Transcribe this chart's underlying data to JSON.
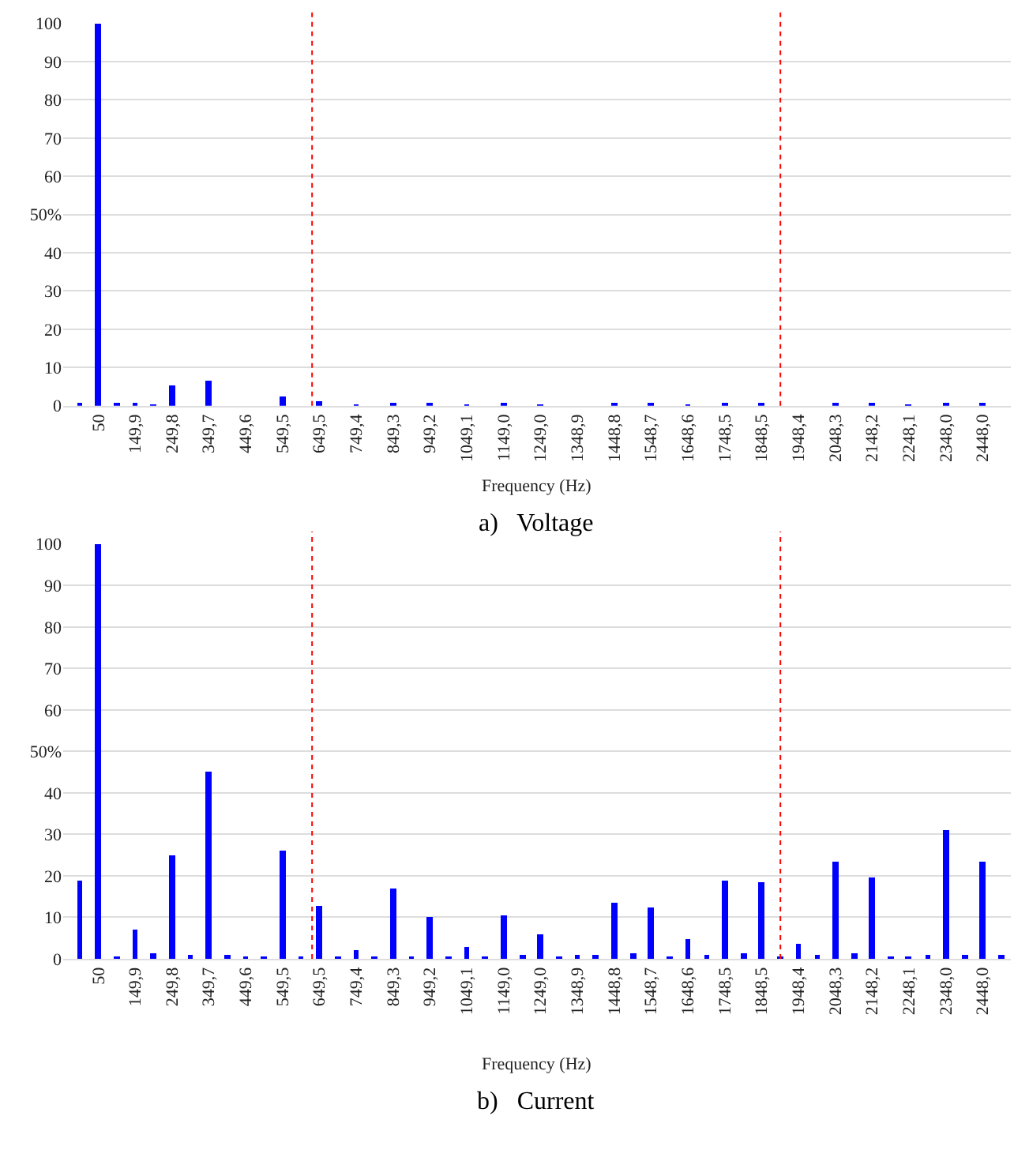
{
  "chart_data": [
    {
      "type": "bar",
      "xlabel": "Frequency (Hz)",
      "annotations": [
        "a)   Voltage"
      ],
      "x": [
        0,
        50,
        100,
        149.9,
        200,
        249.8,
        300,
        349.7,
        400,
        449.6,
        500,
        549.5,
        600,
        649.5,
        700,
        749.4,
        800,
        849.3,
        900,
        949.2,
        1000,
        1049.1,
        1100,
        1149,
        1200,
        1249,
        1300,
        1348.9,
        1400,
        1448.8,
        1500,
        1548.7,
        1600,
        1648.6,
        1700,
        1748.5,
        1800,
        1848.5,
        1900,
        1948.4,
        2000,
        2048.3,
        2100,
        2148.2,
        2200,
        2248.1,
        2300,
        2348,
        2400,
        2448,
        2500
      ],
      "series": [
        {
          "color": "#0000ff",
          "values": [
            0.5,
            100,
            0.7,
            0.5,
            0.3,
            5.4,
            0,
            6.5,
            0,
            0,
            0,
            2.3,
            0,
            1.2,
            0,
            0.3,
            0,
            1,
            0,
            0.7,
            0,
            0.3,
            0,
            0.5,
            0,
            0.2,
            0,
            0,
            0,
            0.5,
            0,
            0.5,
            0,
            0.2,
            0,
            0.5,
            0,
            0.5,
            0,
            0,
            0,
            0.5,
            0,
            0.5,
            0,
            0.2,
            0,
            0.5,
            0,
            0.5,
            0
          ]
        }
      ],
      "xlim": [
        -45,
        2525
      ],
      "xticks": [
        50,
        {
          "value": 149.9,
          "label": "149,9"
        },
        {
          "value": 249.8,
          "label": "249,8"
        },
        {
          "value": 349.7,
          "label": "349,7"
        },
        {
          "value": 449.6,
          "label": "449,6"
        },
        {
          "value": 549.5,
          "label": "549,5"
        },
        {
          "value": 649.5,
          "label": "649,5"
        },
        {
          "value": 749.4,
          "label": "749,4"
        },
        {
          "value": 849.3,
          "label": "849,3"
        },
        {
          "value": 949.2,
          "label": "949,2"
        },
        {
          "value": 1049.1,
          "label": "1049,1"
        },
        {
          "value": 1149,
          "label": "1149,0"
        },
        {
          "value": 1249,
          "label": "1249,0"
        },
        {
          "value": 1348.9,
          "label": "1348,9"
        },
        {
          "value": 1448.8,
          "label": "1448,8"
        },
        {
          "value": 1548.7,
          "label": "1548,7"
        },
        {
          "value": 1648.6,
          "label": "1648,6"
        },
        {
          "value": 1748.5,
          "label": "1748,5"
        },
        {
          "value": 1848.5,
          "label": "1848,5"
        },
        {
          "value": 1948.4,
          "label": "1948,4"
        },
        {
          "value": 2048.3,
          "label": "2048,3"
        },
        {
          "value": 2148.2,
          "label": "2148,2"
        },
        {
          "value": 2248.1,
          "label": "2248,1"
        },
        {
          "value": 2348,
          "label": "2348,0"
        },
        {
          "value": 2448,
          "label": "2448,0"
        }
      ],
      "ylim": [
        0,
        100
      ],
      "yticks": [
        0,
        10,
        20,
        30,
        40,
        {
          "value": 50,
          "label": "50%"
        },
        60,
        70,
        80,
        90,
        100
      ],
      "grid": "y",
      "ref_lines": [
        {
          "axis": "x",
          "value": 630,
          "color": "#ff0000",
          "line_style": "dotted"
        },
        {
          "axis": "x",
          "value": 1900,
          "color": "#ff0000",
          "line_style": "dotted"
        }
      ]
    },
    {
      "type": "bar",
      "xlabel": "Frequency (Hz)",
      "annotations": [
        "b)   Current"
      ],
      "x": [
        0,
        50,
        100,
        149.9,
        200,
        249.8,
        300,
        349.7,
        400,
        449.6,
        500,
        549.5,
        600,
        649.5,
        700,
        749.4,
        800,
        849.3,
        900,
        949.2,
        1000,
        1049.1,
        1100,
        1149,
        1200,
        1249,
        1300,
        1348.9,
        1400,
        1448.8,
        1500,
        1548.7,
        1600,
        1648.6,
        1700,
        1748.5,
        1800,
        1848.5,
        1900,
        1948.4,
        2000,
        2048.3,
        2100,
        2148.2,
        2200,
        2248.1,
        2300,
        2348,
        2400,
        2448,
        2500
      ],
      "series": [
        {
          "color": "#0000ff",
          "values": [
            19,
            100,
            0.7,
            7,
            1.2,
            25,
            1,
            45,
            1,
            0.5,
            0.5,
            26,
            0.5,
            13,
            0.5,
            2,
            0.5,
            17,
            0.8,
            10,
            0.5,
            3,
            0.5,
            10.5,
            1,
            6,
            0.5,
            1,
            1,
            13.5,
            1.2,
            12.5,
            0.5,
            5,
            1,
            19,
            1.5,
            18.5,
            0.5,
            3.5,
            1,
            23.5,
            1.5,
            19.5,
            0.5,
            0.5,
            1,
            31,
            1,
            23.5,
            1
          ]
        }
      ],
      "xlim": [
        -45,
        2525
      ],
      "xticks": [
        50,
        {
          "value": 149.9,
          "label": "149,9"
        },
        {
          "value": 249.8,
          "label": "249,8"
        },
        {
          "value": 349.7,
          "label": "349,7"
        },
        {
          "value": 449.6,
          "label": "449,6"
        },
        {
          "value": 549.5,
          "label": "549,5"
        },
        {
          "value": 649.5,
          "label": "649,5"
        },
        {
          "value": 749.4,
          "label": "749,4"
        },
        {
          "value": 849.3,
          "label": "849,3"
        },
        {
          "value": 949.2,
          "label": "949,2"
        },
        {
          "value": 1049.1,
          "label": "1049,1"
        },
        {
          "value": 1149,
          "label": "1149,0"
        },
        {
          "value": 1249,
          "label": "1249,0"
        },
        {
          "value": 1348.9,
          "label": "1348,9"
        },
        {
          "value": 1448.8,
          "label": "1448,8"
        },
        {
          "value": 1548.7,
          "label": "1548,7"
        },
        {
          "value": 1648.6,
          "label": "1648,6"
        },
        {
          "value": 1748.5,
          "label": "1748,5"
        },
        {
          "value": 1848.5,
          "label": "1848,5"
        },
        {
          "value": 1948.4,
          "label": "1948,4"
        },
        {
          "value": 2048.3,
          "label": "2048,3"
        },
        {
          "value": 2148.2,
          "label": "2148,2"
        },
        {
          "value": 2248.1,
          "label": "2248,1"
        },
        {
          "value": 2348,
          "label": "2348,0"
        },
        {
          "value": 2448,
          "label": "2448,0"
        }
      ],
      "ylim": [
        0,
        100
      ],
      "yticks": [
        0,
        10,
        20,
        30,
        40,
        {
          "value": 50,
          "label": "50%"
        },
        60,
        70,
        80,
        90,
        100
      ],
      "grid": "y",
      "ref_lines": [
        {
          "axis": "x",
          "value": 630,
          "color": "#ff0000",
          "line_style": "dotted"
        },
        {
          "axis": "x",
          "value": 1900,
          "color": "#ff0000",
          "line_style": "dotted"
        }
      ]
    }
  ]
}
